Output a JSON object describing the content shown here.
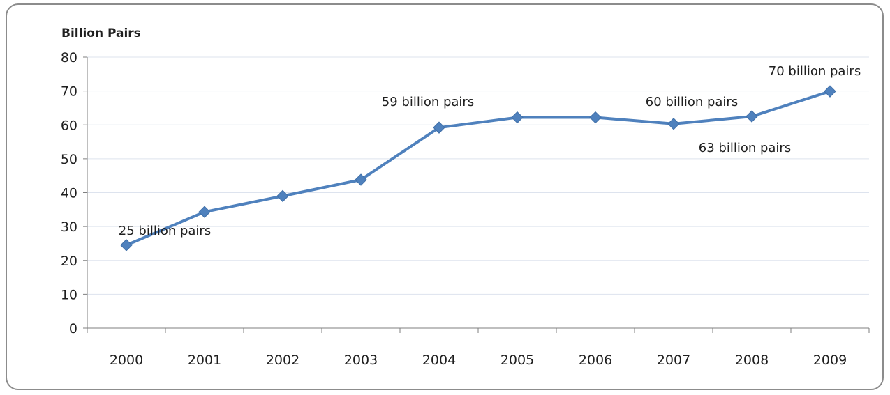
{
  "chart_data": {
    "type": "line",
    "title": "",
    "unit_label": "Billion Pairs",
    "xlabel": "",
    "ylabel": "",
    "categories": [
      "2000",
      "2001",
      "2002",
      "2003",
      "2004",
      "2005",
      "2006",
      "2007",
      "2008",
      "2009"
    ],
    "series": [
      {
        "values": [
          24.5,
          34.3,
          39,
          43.8,
          59.2,
          62.2,
          62.2,
          60.3,
          62.5,
          69.9
        ],
        "color": "#4f81bd",
        "marker": "diamond"
      }
    ],
    "ylim": [
      0,
      80
    ],
    "yticks": [
      "0",
      "10",
      "20",
      "30",
      "40",
      "50",
      "60",
      "70",
      "80"
    ],
    "grid": "horizontal",
    "legend": "none",
    "annotations": [
      {
        "text": "25 billion pairs",
        "category": "2000"
      },
      {
        "text": "59 billion pairs",
        "category": "2004"
      },
      {
        "text": "60 billion pairs",
        "category": "2007"
      },
      {
        "text": "63 billion pairs",
        "category": "2008"
      },
      {
        "text": "70 billion pairs",
        "category": "2009"
      }
    ],
    "colors": {
      "line": "#4f81bd",
      "grid": "#dde3ee",
      "axis": "#7f7f7f",
      "border": "#8c8c8c"
    }
  }
}
